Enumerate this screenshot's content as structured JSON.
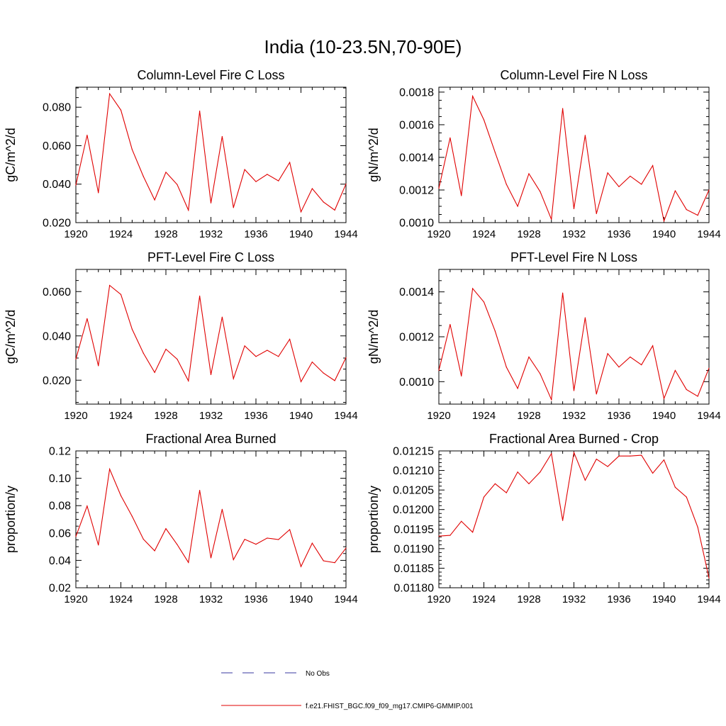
{
  "figure": {
    "title": "India (10-23.5N,70-90E)"
  },
  "legend": {
    "entries": [
      {
        "label": "No Obs",
        "color": "#3a3aa0",
        "dash": true
      },
      {
        "label": "f.e21.FHIST_BGC.f09_f09_mg17.CMIP6-GMMIP.001",
        "color": "#e00000",
        "dash": false
      }
    ]
  },
  "chart_data": [
    {
      "type": "line",
      "title": "Column-Level Fire C Loss",
      "xlabel": "",
      "ylabel": "gC/m^2/d",
      "xlim": [
        1920,
        1944
      ],
      "ylim": [
        0.02,
        0.0904
      ],
      "x_ticks": [
        1920,
        1924,
        1928,
        1932,
        1936,
        1940,
        1944
      ],
      "x_tick_labels": [
        "1920",
        "1924",
        "1928",
        "1932",
        "1936",
        "1940",
        "1944"
      ],
      "y_ticks": [
        0.02,
        0.04,
        0.06,
        0.08
      ],
      "y_tick_labels": [
        "0.020",
        "0.040",
        "0.060",
        "0.080"
      ],
      "y_minor_step": 0.005,
      "color": "#e00000",
      "series": [
        {
          "x": [
            1920,
            1921,
            1922,
            1923,
            1924,
            1925,
            1926,
            1927,
            1928,
            1929,
            1930,
            1931,
            1932,
            1933,
            1934,
            1935,
            1936,
            1937,
            1938,
            1939,
            1940,
            1941,
            1942,
            1943,
            1944
          ],
          "values": [
            0.0395,
            0.0655,
            0.0355,
            0.087,
            0.0785,
            0.058,
            0.044,
            0.0318,
            0.0462,
            0.0398,
            0.0265,
            0.078,
            0.0302,
            0.0648,
            0.0278,
            0.0476,
            0.0413,
            0.0451,
            0.0417,
            0.0513,
            0.0256,
            0.0377,
            0.0307,
            0.0265,
            0.0401
          ]
        }
      ]
    },
    {
      "type": "line",
      "title": "Column-Level Fire N Loss",
      "xlabel": "",
      "ylabel": "gN/m^2/d",
      "xlim": [
        1920,
        1944
      ],
      "ylim": [
        0.001,
        0.00183
      ],
      "x_ticks": [
        1920,
        1924,
        1928,
        1932,
        1936,
        1940,
        1944
      ],
      "x_tick_labels": [
        "1920",
        "1924",
        "1928",
        "1932",
        "1936",
        "1940",
        "1944"
      ],
      "y_ticks": [
        0.001,
        0.0012,
        0.0014,
        0.0016,
        0.0018
      ],
      "y_tick_labels": [
        "0.0010",
        "0.0012",
        "0.0014",
        "0.0016",
        "0.0018"
      ],
      "y_minor_step": 5e-05,
      "color": "#e00000",
      "series": [
        {
          "x": [
            1920,
            1921,
            1922,
            1923,
            1924,
            1925,
            1926,
            1927,
            1928,
            1929,
            1930,
            1931,
            1932,
            1933,
            1934,
            1935,
            1936,
            1937,
            1938,
            1939,
            1940,
            1941,
            1942,
            1943,
            1944
          ],
          "values": [
            0.00121,
            0.00152,
            0.001165,
            0.001775,
            0.00163,
            0.00143,
            0.001235,
            0.0011,
            0.0013,
            0.00119,
            0.00102,
            0.0017,
            0.001085,
            0.001535,
            0.001055,
            0.001305,
            0.00122,
            0.001285,
            0.001235,
            0.00135,
            0.00101,
            0.001195,
            0.00108,
            0.001045,
            0.0012
          ]
        }
      ]
    },
    {
      "type": "line",
      "title": "PFT-Level Fire C Loss",
      "xlabel": "",
      "ylabel": "gC/m^2/d",
      "xlim": [
        1920,
        1944
      ],
      "ylim": [
        0.0092,
        0.07
      ],
      "x_ticks": [
        1920,
        1924,
        1928,
        1932,
        1936,
        1940,
        1944
      ],
      "x_tick_labels": [
        "1920",
        "1924",
        "1928",
        "1932",
        "1936",
        "1940",
        "1944"
      ],
      "y_ticks": [
        0.02,
        0.04,
        0.06
      ],
      "y_tick_labels": [
        "0.020",
        "0.040",
        "0.060"
      ],
      "y_minor_step": 0.005,
      "color": "#e00000",
      "series": [
        {
          "x": [
            1920,
            1921,
            1922,
            1923,
            1924,
            1925,
            1926,
            1927,
            1928,
            1929,
            1930,
            1931,
            1932,
            1933,
            1934,
            1935,
            1936,
            1937,
            1938,
            1939,
            1940,
            1941,
            1942,
            1943,
            1944
          ],
          "values": [
            0.0295,
            0.0478,
            0.0265,
            0.0628,
            0.0587,
            0.043,
            0.0322,
            0.0235,
            0.034,
            0.0295,
            0.0197,
            0.058,
            0.0225,
            0.0485,
            0.0207,
            0.0355,
            0.0307,
            0.0335,
            0.0307,
            0.0385,
            0.0193,
            0.0282,
            0.0232,
            0.0198,
            0.0302
          ]
        }
      ]
    },
    {
      "type": "line",
      "title": "PFT-Level Fire N Loss",
      "xlabel": "",
      "ylabel": "gN/m^2/d",
      "xlim": [
        1920,
        1944
      ],
      "ylim": [
        0.0009,
        0.0015
      ],
      "x_ticks": [
        1920,
        1924,
        1928,
        1932,
        1936,
        1940,
        1944
      ],
      "x_tick_labels": [
        "1920",
        "1924",
        "1928",
        "1932",
        "1936",
        "1940",
        "1944"
      ],
      "y_ticks": [
        0.001,
        0.0012,
        0.0014
      ],
      "y_tick_labels": [
        "0.0010",
        "0.0012",
        "0.0014"
      ],
      "y_minor_step": 5e-05,
      "color": "#e00000",
      "series": [
        {
          "x": [
            1920,
            1921,
            1922,
            1923,
            1924,
            1925,
            1926,
            1927,
            1928,
            1929,
            1930,
            1931,
            1932,
            1933,
            1934,
            1935,
            1936,
            1937,
            1938,
            1939,
            1940,
            1941,
            1942,
            1943,
            1944
          ],
          "values": [
            0.00105,
            0.001255,
            0.001025,
            0.001415,
            0.001355,
            0.001225,
            0.001065,
            0.00097,
            0.00111,
            0.001035,
            0.00092,
            0.001395,
            0.00096,
            0.001285,
            0.000945,
            0.001125,
            0.001065,
            0.00111,
            0.001075,
            0.00116,
            0.000925,
            0.00105,
            0.000965,
            0.000935,
            0.00106
          ]
        }
      ]
    },
    {
      "type": "line",
      "title": "Fractional Area Burned",
      "xlabel": "",
      "ylabel": "proportion/y",
      "xlim": [
        1920,
        1944
      ],
      "ylim": [
        0.02,
        0.12
      ],
      "x_ticks": [
        1920,
        1924,
        1928,
        1932,
        1936,
        1940,
        1944
      ],
      "x_tick_labels": [
        "1920",
        "1924",
        "1928",
        "1932",
        "1936",
        "1940",
        "1944"
      ],
      "y_ticks": [
        0.02,
        0.04,
        0.06,
        0.08,
        0.1,
        0.12
      ],
      "y_tick_labels": [
        "0.02",
        "0.04",
        "0.06",
        "0.08",
        "0.10",
        "0.12"
      ],
      "y_minor_step": 0.005,
      "color": "#e00000",
      "series": [
        {
          "x": [
            1920,
            1921,
            1922,
            1923,
            1924,
            1925,
            1926,
            1927,
            1928,
            1929,
            1930,
            1931,
            1932,
            1933,
            1934,
            1935,
            1936,
            1937,
            1938,
            1939,
            1940,
            1941,
            1942,
            1943,
            1944
          ],
          "values": [
            0.0575,
            0.0797,
            0.0512,
            0.1067,
            0.0873,
            0.0722,
            0.0555,
            0.047,
            0.0632,
            0.0516,
            0.0385,
            0.0912,
            0.0418,
            0.0773,
            0.0405,
            0.0554,
            0.0518,
            0.0563,
            0.0552,
            0.0625,
            0.0355,
            0.0526,
            0.0397,
            0.0383,
            0.049
          ]
        }
      ]
    },
    {
      "type": "line",
      "title": "Fractional Area Burned - Crop",
      "xlabel": "",
      "ylabel": "proportion/y",
      "xlim": [
        1920,
        1944
      ],
      "ylim": [
        0.0118,
        0.01215
      ],
      "x_ticks": [
        1920,
        1924,
        1928,
        1932,
        1936,
        1940,
        1944
      ],
      "x_tick_labels": [
        "1920",
        "1924",
        "1928",
        "1932",
        "1936",
        "1940",
        "1944"
      ],
      "y_ticks": [
        0.0118,
        0.01185,
        0.0119,
        0.01195,
        0.012,
        0.01205,
        0.0121,
        0.01215
      ],
      "y_tick_labels": [
        "0.01180",
        "0.01185",
        "0.01190",
        "0.01195",
        "0.01200",
        "0.01205",
        "0.01210",
        "0.01215"
      ],
      "y_minor_step": 1e-05,
      "color": "#e00000",
      "series": [
        {
          "x": [
            1920,
            1921,
            1922,
            1923,
            1924,
            1925,
            1926,
            1927,
            1928,
            1929,
            1930,
            1931,
            1932,
            1933,
            1934,
            1935,
            1936,
            1937,
            1938,
            1939,
            1940,
            1941,
            1942,
            1943,
            1944
          ],
          "values": [
            0.011932,
            0.011934,
            0.01197,
            0.011942,
            0.012032,
            0.012066,
            0.012043,
            0.012096,
            0.012066,
            0.012096,
            0.012143,
            0.011972,
            0.012146,
            0.012075,
            0.012129,
            0.01211,
            0.012137,
            0.012137,
            0.012139,
            0.012093,
            0.012127,
            0.012057,
            0.012032,
            0.011955,
            0.011825
          ]
        }
      ]
    }
  ]
}
